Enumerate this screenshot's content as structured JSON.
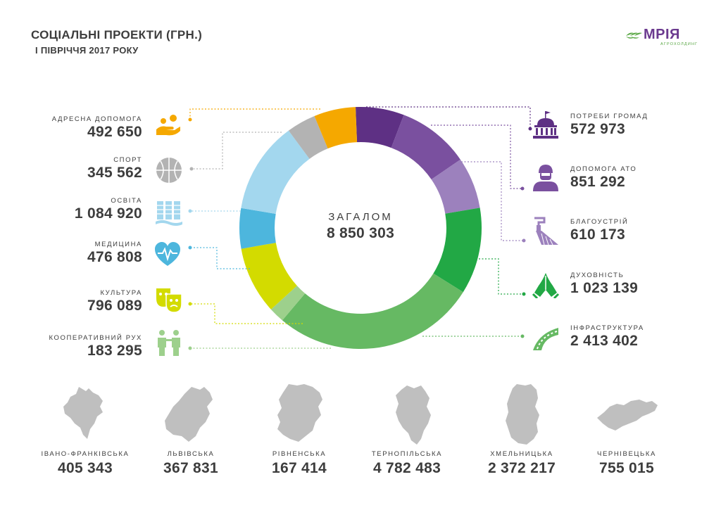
{
  "header": {
    "title": "СОЦІАЛЬНІ ПРОЕКТИ (ГРН.)",
    "subtitle": "І ПІВРІЧЧЯ 2017 РОКУ"
  },
  "logo": {
    "name": "МРІЯ",
    "tagline": "АГРОХОЛДИНГ",
    "color": "#6b3a8f",
    "accent": "#57a642"
  },
  "total": {
    "label": "ЗАГАЛОМ",
    "value": "8 850 303"
  },
  "chart_data": {
    "type": "pie",
    "donut": true,
    "title": "СОЦІАЛЬНІ ПРОЕКТИ (ГРН.)",
    "subtitle": "І ПІВРІЧЧЯ 2017 РОКУ",
    "slices": [
      {
        "label": "ПОТРЕБИ ГРОМАД",
        "value": 572973,
        "value_label": "572 973",
        "color": "#5e3084",
        "icon": "city-hall-icon"
      },
      {
        "label": "ДОПОМОГА АТО",
        "value": 851292,
        "value_label": "851 292",
        "color": "#7a509f",
        "icon": "soldier-icon"
      },
      {
        "label": "БЛАГОУСТРІЙ",
        "value": 610173,
        "value_label": "610 173",
        "color": "#9c81bd",
        "icon": "paint-brush-icon"
      },
      {
        "label": "ДУХОВНІСТЬ",
        "value": 1023139,
        "value_label": "1 023 139",
        "color": "#22a845",
        "icon": "praying-hands-icon"
      },
      {
        "label": "ІНФРАСТРУКТУРА",
        "value": 2413402,
        "value_label": "2 413 402",
        "color": "#66b963",
        "icon": "road-icon"
      },
      {
        "label": "КООПЕРАТИВНИЙ РУХ",
        "value": 183295,
        "value_label": "183 295",
        "color": "#9dd08c",
        "icon": "people-icon"
      },
      {
        "label": "КУЛЬТУРА",
        "value": 796089,
        "value_label": "796 089",
        "color": "#d3db00",
        "icon": "theater-masks-icon"
      },
      {
        "label": "МЕДИЦИНА",
        "value": 476808,
        "value_label": "476 808",
        "color": "#4db6dd",
        "icon": "heart-pulse-icon"
      },
      {
        "label": "ОСВІТА",
        "value": 1084920,
        "value_label": "1 084 920",
        "color": "#a3d7ee",
        "icon": "books-icon"
      },
      {
        "label": "СПОРТ",
        "value": 345562,
        "value_label": "345 562",
        "color": "#b3b3b3",
        "icon": "basketball-icon"
      },
      {
        "label": "АДРЕСНА ДОПОМОГА",
        "value": 492650,
        "value_label": "492 650",
        "color": "#f5a800",
        "icon": "helping-hands-icon"
      }
    ]
  },
  "regions": [
    {
      "name": "ІВАНО-ФРАНКІВСЬКА",
      "value": "405 343"
    },
    {
      "name": "ЛЬВІВСЬКА",
      "value": "367 831"
    },
    {
      "name": "РІВНЕНСЬКА",
      "value": "167 414"
    },
    {
      "name": "ТЕРНОПІЛЬСЬКА",
      "value": "4 782 483"
    },
    {
      "name": "ХМЕЛЬНИЦЬКА",
      "value": "2 372 217"
    },
    {
      "name": "ЧЕРНІВЕЦЬКА",
      "value": "755 015"
    }
  ],
  "colors": {
    "text": "#3d3d3d",
    "map": "#bfbfbf"
  }
}
